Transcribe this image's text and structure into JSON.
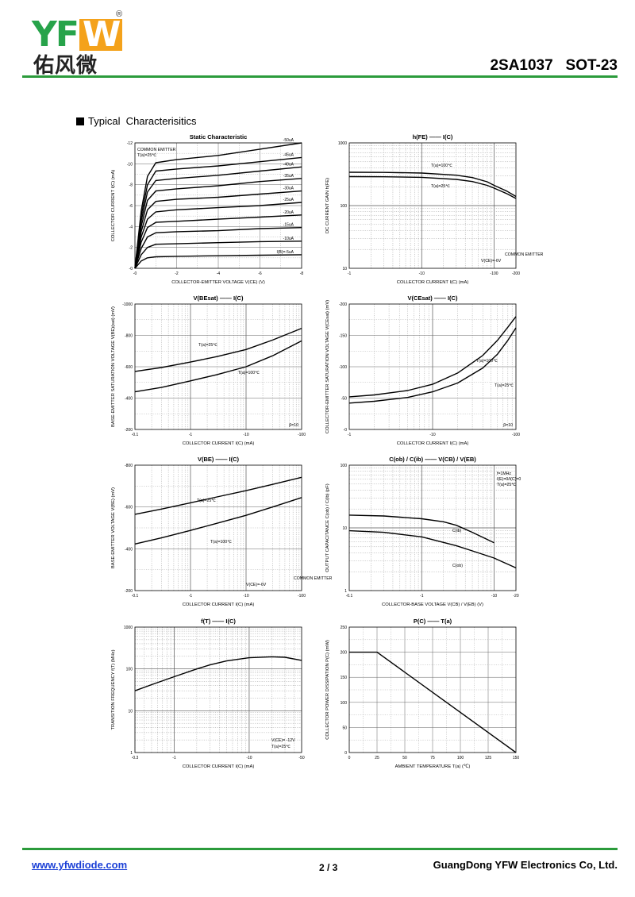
{
  "header": {
    "logo_text": "YFW",
    "logo_cn": "佑风微",
    "reg": "®",
    "part_number": "2SA1037   SOT-23"
  },
  "section_title": "Typical  Characterisitics",
  "footer": {
    "url": "www.yfwdiode.com",
    "page": "2 / 3",
    "company": "GuangDong YFW Electronics Co, Ltd."
  },
  "colors": {
    "brand_green": "#2b9b3b",
    "brand_orange": "#f4a21b",
    "link_blue": "#1a3fd6"
  },
  "chart_data": [
    {
      "id": "static",
      "type": "line",
      "title": "Static Characteristic",
      "xlabel": "COLLECTOR-EMITTER VOLTAGE   V(CE)  (V)",
      "ylabel": "COLLECTOR CURRENT  I(C)  (mA)",
      "xscale": "linear",
      "yscale": "linear",
      "xlim": [
        0,
        -8
      ],
      "ylim": [
        0,
        -12
      ],
      "xticks": [
        "-0",
        "-2",
        "-4",
        "-6",
        "-8"
      ],
      "yticks": [
        "-0",
        "-2",
        "-4",
        "-6",
        "-8",
        "-10",
        "-12"
      ],
      "notes": [
        "COMMON EMITTER",
        "T(a)=25℃"
      ],
      "series": [
        {
          "name": "-50uA",
          "x": [
            0,
            -0.3,
            -0.6,
            -1,
            -2,
            -4,
            -6,
            -8
          ],
          "y": [
            0,
            -5.5,
            -8.8,
            -10.1,
            -10.4,
            -10.8,
            -11.4,
            -12
          ]
        },
        {
          "name": "-45uA",
          "x": [
            0,
            -0.3,
            -0.6,
            -1,
            -2,
            -4,
            -6,
            -8
          ],
          "y": [
            0,
            -5,
            -8,
            -9.3,
            -9.5,
            -9.8,
            -10.2,
            -10.6
          ]
        },
        {
          "name": "-40uA",
          "x": [
            0,
            -0.3,
            -0.6,
            -1,
            -2,
            -4,
            -6,
            -8
          ],
          "y": [
            0,
            -4.5,
            -7.3,
            -8.4,
            -8.6,
            -8.9,
            -9.3,
            -9.7
          ]
        },
        {
          "name": "-35uA",
          "x": [
            0,
            -0.3,
            -0.6,
            -1,
            -2,
            -4,
            -6,
            -8
          ],
          "y": [
            0,
            -4,
            -6.5,
            -7.4,
            -7.6,
            -7.9,
            -8.3,
            -8.6
          ]
        },
        {
          "name": "-30uA",
          "x": [
            0,
            -0.3,
            -0.6,
            -1,
            -2,
            -4,
            -6,
            -8
          ],
          "y": [
            0,
            -3.5,
            -5.6,
            -6.4,
            -6.6,
            -6.8,
            -7.1,
            -7.4
          ]
        },
        {
          "name": "-25uA",
          "x": [
            0,
            -0.3,
            -0.6,
            -1,
            -2,
            -4,
            -6,
            -8
          ],
          "y": [
            0,
            -3,
            -4.7,
            -5.4,
            -5.6,
            -5.8,
            -6,
            -6.3
          ]
        },
        {
          "name": "-20uA",
          "x": [
            0,
            -0.3,
            -0.6,
            -1,
            -2,
            -4,
            -6,
            -8
          ],
          "y": [
            0,
            -2.5,
            -3.9,
            -4.4,
            -4.5,
            -4.7,
            -4.9,
            -5.1
          ]
        },
        {
          "name": "-15uA",
          "x": [
            0,
            -0.3,
            -0.6,
            -1,
            -2,
            -4,
            -6,
            -8
          ],
          "y": [
            0,
            -1.9,
            -3,
            -3.4,
            -3.5,
            -3.6,
            -3.8,
            -3.9
          ]
        },
        {
          "name": "-10uA",
          "x": [
            0,
            -0.3,
            -0.6,
            -1,
            -2,
            -4,
            -6,
            -8
          ],
          "y": [
            0,
            -1.3,
            -2,
            -2.3,
            -2.35,
            -2.45,
            -2.55,
            -2.6
          ]
        },
        {
          "name": "I(B)=-5uA",
          "x": [
            0,
            -0.3,
            -0.6,
            -1,
            -2,
            -4,
            -6,
            -8
          ],
          "y": [
            0,
            -0.7,
            -1,
            -1.1,
            -1.15,
            -1.2,
            -1.25,
            -1.3
          ]
        }
      ]
    },
    {
      "id": "hfe",
      "type": "line",
      "title": "h(FE)  ——  I(C)",
      "xlabel": "COLLECTOR CURRENT   I(C)  (mA)",
      "ylabel": "DC CURRENT GAIN   h(FE)",
      "xscale": "log",
      "yscale": "log",
      "xlim": [
        -1,
        -200
      ],
      "ylim": [
        10,
        1000
      ],
      "xticks": [
        "-1",
        "-10",
        "-100",
        "-200"
      ],
      "yticks": [
        "10",
        "100",
        "1000"
      ],
      "notes": [
        "COMMON EMITTER",
        "V(CE)=-6V"
      ],
      "series": [
        {
          "name": "T(a)=100℃",
          "x": [
            1,
            3,
            10,
            30,
            50,
            80,
            100,
            150,
            200
          ],
          "y": [
            340,
            338,
            330,
            305,
            280,
            240,
            210,
            170,
            140
          ]
        },
        {
          "name": "T(a)=25℃",
          "x": [
            1,
            3,
            10,
            30,
            50,
            80,
            100,
            150,
            200
          ],
          "y": [
            290,
            288,
            282,
            262,
            242,
            210,
            190,
            155,
            130
          ]
        }
      ]
    },
    {
      "id": "vbesat",
      "type": "line",
      "title": "V(BEsat)  ——  I(C)",
      "xlabel": "COLLECTOR CURRENT   I(C)  (mA)",
      "ylabel": "BASE-EMITTER SATURATION VOLTAGE  V(BE)(sat)  (mV)",
      "xscale": "log",
      "yscale": "linear",
      "xlim": [
        -0.1,
        -100
      ],
      "ylim": [
        -200,
        -1000
      ],
      "xticks": [
        "-0.1",
        "-1",
        "-10",
        "-100"
      ],
      "yticks": [
        "-200",
        "-400",
        "-600",
        "-800",
        "-1000"
      ],
      "notes": [
        "β=10"
      ],
      "series": [
        {
          "name": "T(a)=25℃",
          "x": [
            0.1,
            0.3,
            1,
            3,
            10,
            30,
            100
          ],
          "y": [
            570,
            595,
            630,
            665,
            710,
            770,
            845
          ]
        },
        {
          "name": "T(a)=100℃",
          "x": [
            0.1,
            0.3,
            1,
            3,
            10,
            30,
            100
          ],
          "y": [
            440,
            468,
            510,
            550,
            600,
            670,
            765
          ]
        }
      ]
    },
    {
      "id": "vcesat",
      "type": "line",
      "title": "V(CEsat)  ——  I(C)",
      "xlabel": "COLLECTOR CURRENT   I(C)  (mA)",
      "ylabel": "COLLECTOR-EMITTER SATURATION VOLTAGE  V(CEsat)  (mV)",
      "xscale": "log",
      "yscale": "linear",
      "xlim": [
        -1,
        -100
      ],
      "ylim": [
        0,
        -200
      ],
      "xticks": [
        "-1",
        "-10",
        "-100"
      ],
      "yticks": [
        "-0",
        "-50",
        "-100",
        "-150",
        "-200"
      ],
      "notes": [
        "β=10"
      ],
      "series": [
        {
          "name": "T(a)=100℃",
          "x": [
            1,
            2,
            5,
            10,
            20,
            40,
            60,
            80,
            100
          ],
          "y": [
            52,
            55,
            62,
            72,
            90,
            118,
            142,
            163,
            180
          ]
        },
        {
          "name": "T(a)=25℃",
          "x": [
            1,
            2,
            5,
            10,
            20,
            40,
            60,
            80,
            100
          ],
          "y": [
            42,
            45,
            51,
            60,
            74,
            98,
            120,
            142,
            162
          ]
        }
      ]
    },
    {
      "id": "vbe",
      "type": "line",
      "title": "V(BE)  ——  I(C)",
      "xlabel": "COLLECTOR CURRENT   I(C)  (mA)",
      "ylabel": "BASE-EMITTER VOLTAGE   V(BE)  (mV)",
      "xscale": "log",
      "yscale": "linear",
      "xlim": [
        -0.1,
        -100
      ],
      "ylim": [
        -200,
        -800
      ],
      "xticks": [
        "-0.1",
        "-1",
        "-10",
        "-100"
      ],
      "yticks": [
        "-200",
        "-400",
        "-600",
        "-800"
      ],
      "notes": [
        "COMMON EMITTER",
        "V(CE)=-6V"
      ],
      "series": [
        {
          "name": "T(a)=25℃",
          "x": [
            0.1,
            0.3,
            1,
            3,
            10,
            30,
            100
          ],
          "y": [
            565,
            590,
            620,
            648,
            678,
            708,
            742
          ]
        },
        {
          "name": "T(a)=100℃",
          "x": [
            0.1,
            0.3,
            1,
            3,
            10,
            30,
            100
          ],
          "y": [
            423,
            452,
            488,
            522,
            560,
            600,
            645
          ]
        }
      ]
    },
    {
      "id": "cap",
      "type": "line",
      "title": "C(ob) / C(ib)  ——  V(CB) / V(EB)",
      "xlabel": "COLLECTOR-BASE VOLTAGE   V(CB) / V(EB)  (V)",
      "ylabel": "OUTPUT CAPACITANCE   C(ob) / C(ib)  (pF)",
      "xscale": "log",
      "yscale": "log",
      "xlim": [
        -0.1,
        -20
      ],
      "ylim": [
        1,
        100
      ],
      "xticks": [
        "-0.1",
        "-1",
        "-10",
        "-20"
      ],
      "yticks": [
        "1",
        "10",
        "100"
      ],
      "notes": [
        "f=1MHz",
        "I(E)=0/I(C)=0",
        "T(a)=25℃"
      ],
      "series": [
        {
          "name": "C(ib)",
          "x": [
            0.1,
            0.3,
            1,
            2,
            3,
            5,
            10
          ],
          "y": [
            16,
            15.5,
            14,
            12.5,
            11,
            8.5,
            5.8
          ]
        },
        {
          "name": "C(ob)",
          "x": [
            0.1,
            0.3,
            1,
            3,
            5,
            10,
            20
          ],
          "y": [
            9,
            8.5,
            7.2,
            5.2,
            4.3,
            3.3,
            2.3
          ]
        }
      ]
    },
    {
      "id": "ft",
      "type": "line",
      "title": "f(T)  ——  I(C)",
      "xlabel": "COLLECTOR CURRENT   I(C)  (mA)",
      "ylabel": "TRANSITION FREQUENCY   f(T)  (MHz)",
      "xscale": "log",
      "yscale": "log",
      "xlim": [
        -0.3,
        -50
      ],
      "ylim": [
        1,
        1000
      ],
      "xticks": [
        "-0.3",
        "-1",
        "-10",
        "-50"
      ],
      "yticks": [
        "1",
        "10",
        "100",
        "1000"
      ],
      "notes": [
        "V(CE)= -12V",
        "T(a)=25℃"
      ],
      "series": [
        {
          "name": "f(T)",
          "x": [
            0.3,
            0.5,
            1,
            2,
            3,
            5,
            10,
            20,
            30,
            50
          ],
          "y": [
            30,
            42,
            65,
            100,
            125,
            155,
            185,
            195,
            190,
            160
          ]
        }
      ]
    },
    {
      "id": "pc",
      "type": "line",
      "title": "P(C)  ——  T(a)",
      "xlabel": "AMBIENT TEMPERATURE   T(a)  (℃)",
      "ylabel": "COLLECTOR POWER DISSIPATION  P(C)  (mW)",
      "xscale": "linear",
      "yscale": "linear",
      "xlim": [
        0,
        150
      ],
      "ylim": [
        0,
        250
      ],
      "xticks": [
        "0",
        "25",
        "50",
        "75",
        "100",
        "125",
        "150"
      ],
      "yticks": [
        "0",
        "50",
        "100",
        "150",
        "200",
        "250"
      ],
      "notes": [],
      "series": [
        {
          "name": "P(C)",
          "x": [
            0,
            25,
            150
          ],
          "y": [
            200,
            200,
            0
          ]
        }
      ]
    }
  ]
}
